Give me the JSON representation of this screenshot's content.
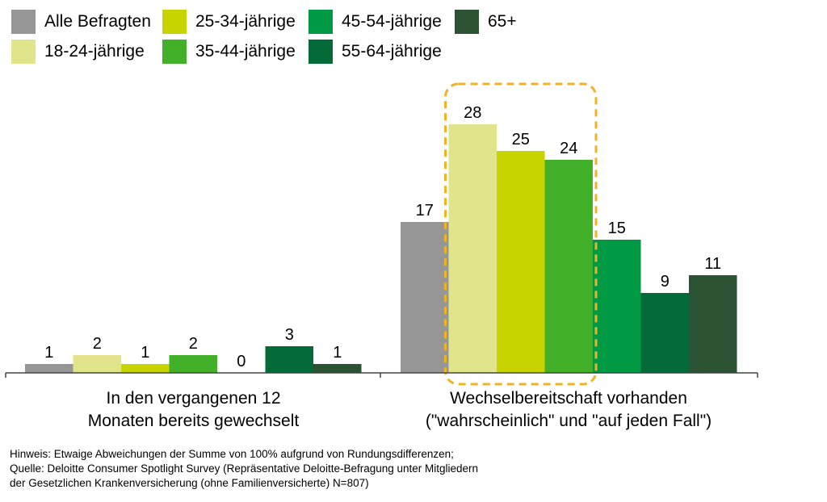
{
  "chart_data": {
    "type": "bar",
    "categories": [
      "In den vergangenen 12\nMonaten bereits gewechselt",
      "Wechselbereitschaft vorhanden\n(\"wahrscheinlich\" und \"auf jeden Fall\")"
    ],
    "series": [
      {
        "name": "Alle Befragten",
        "values": [
          1,
          17
        ],
        "color": "#969696"
      },
      {
        "name": "18-24-jährige",
        "values": [
          2,
          28
        ],
        "color": "#E2E48C"
      },
      {
        "name": "25-34-jährige",
        "values": [
          1,
          25
        ],
        "color": "#C8D400"
      },
      {
        "name": "35-44-jährige",
        "values": [
          2,
          24
        ],
        "color": "#43B02A"
      },
      {
        "name": "45-54-jährige",
        "values": [
          0,
          15
        ],
        "color": "#009A44"
      },
      {
        "name": "55-64-jährige",
        "values": [
          3,
          9
        ],
        "color": "#046A38"
      },
      {
        "name": "65+",
        "values": [
          1,
          11
        ],
        "color": "#2C5234"
      }
    ],
    "ylim": [
      0,
      28
    ],
    "grid": false,
    "legend_position": "top-left",
    "highlight": {
      "category_index": 1,
      "series": [
        "18-24-jährige",
        "25-34-jährige",
        "35-44-jährige"
      ],
      "color": "#F0B323"
    }
  },
  "footnote": {
    "lines": [
      "Hinweis: Etwaige Abweichungen der Summe von 100% aufgrund von Rundungsdifferenzen;",
      "Quelle: Deloitte Consumer Spotlight Survey (Repräsentative Deloitte-Befragung unter Mitgliedern",
      "der Gesetzlichen Krankenversicherung (ohne Familienversicherte) N=807)"
    ]
  }
}
